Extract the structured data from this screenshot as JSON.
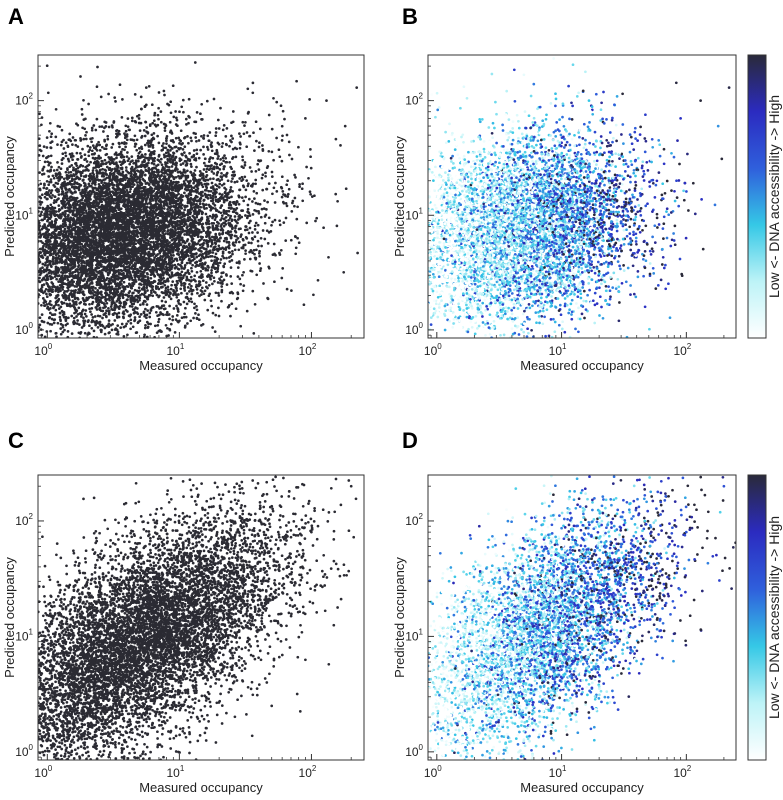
{
  "chart_data": [
    {
      "panel": "A",
      "type": "scatter",
      "xlabel": "Measured occupancy",
      "ylabel": "Predicted occupancy",
      "xscale": "log",
      "yscale": "log",
      "xlim": [
        0.85,
        250
      ],
      "ylim": [
        0.85,
        250
      ],
      "xticks": [
        {
          "base": "10",
          "exp": "0",
          "value": 1
        },
        {
          "base": "10",
          "exp": "1",
          "value": 10
        },
        {
          "base": "10",
          "exp": "2",
          "value": 100
        }
      ],
      "yticks": [
        {
          "base": "10",
          "exp": "0",
          "value": 1
        },
        {
          "base": "10",
          "exp": "1",
          "value": 10
        },
        {
          "base": "10",
          "exp": "2",
          "value": 100
        }
      ],
      "color_mode": "solid",
      "marker_color": "#2b2b33",
      "points": [
        [
          1.4,
          3.2
        ],
        [
          2.1,
          7.5
        ],
        [
          3.0,
          12.0
        ],
        [
          4.5,
          5.0
        ],
        [
          6.0,
          20.0
        ],
        [
          8.0,
          9.0
        ],
        [
          12.0,
          30.0
        ],
        [
          18.0,
          14.0
        ],
        [
          25.0,
          8.0
        ],
        [
          40.0,
          25.0
        ],
        [
          60.0,
          45.0
        ],
        [
          90.0,
          70.0
        ],
        [
          130.0,
          100.0
        ],
        [
          180.0,
          60.0
        ],
        [
          220.0,
          130.0
        ],
        [
          1.2,
          60.0
        ],
        [
          2.5,
          1.5
        ],
        [
          5.0,
          2.2
        ],
        [
          10.0,
          1.2
        ],
        [
          30.0,
          3.0
        ]
      ],
      "point_cloud": {
        "count": 9000,
        "log_x_mean": 0.55,
        "log_x_sd": 0.5,
        "log_y_mean": 0.85,
        "log_y_sd": 0.42,
        "correlation": 0.25
      }
    },
    {
      "panel": "B",
      "type": "scatter",
      "xlabel": "Measured occupancy",
      "ylabel": "Predicted occupancy",
      "xscale": "log",
      "yscale": "log",
      "xlim": [
        0.85,
        250
      ],
      "ylim": [
        0.85,
        250
      ],
      "xticks": [
        {
          "base": "10",
          "exp": "0",
          "value": 1
        },
        {
          "base": "10",
          "exp": "1",
          "value": 10
        },
        {
          "base": "10",
          "exp": "2",
          "value": 100
        }
      ],
      "yticks": [
        {
          "base": "10",
          "exp": "0",
          "value": 1
        },
        {
          "base": "10",
          "exp": "1",
          "value": 10
        },
        {
          "base": "10",
          "exp": "2",
          "value": 100
        }
      ],
      "color_mode": "accessibility",
      "colorbar": {
        "label": "Low <-   DNA accessibility   -> High",
        "stops": [
          "#ffffff",
          "#bdf3f7",
          "#35c8e6",
          "#2f5fdc",
          "#2b2bc0",
          "#2a2a3a"
        ]
      },
      "points": [
        [
          1.4,
          3.2
        ],
        [
          2.1,
          7.5
        ],
        [
          3.0,
          12.0
        ],
        [
          4.5,
          5.0
        ],
        [
          6.0,
          20.0
        ],
        [
          8.0,
          9.0
        ],
        [
          12.0,
          30.0
        ],
        [
          18.0,
          14.0
        ],
        [
          25.0,
          8.0
        ],
        [
          40.0,
          25.0
        ],
        [
          60.0,
          45.0
        ],
        [
          90.0,
          70.0
        ],
        [
          130.0,
          100.0
        ],
        [
          180.0,
          60.0
        ],
        [
          220.0,
          130.0
        ]
      ],
      "point_cloud": {
        "count": 9000,
        "log_x_mean": 0.55,
        "log_x_sd": 0.5,
        "log_y_mean": 0.85,
        "log_y_sd": 0.42,
        "correlation": 0.25
      }
    },
    {
      "panel": "C",
      "type": "scatter",
      "xlabel": "Measured occupancy",
      "ylabel": "Predicted occupancy",
      "xscale": "log",
      "yscale": "log",
      "xlim": [
        0.85,
        250
      ],
      "ylim": [
        0.85,
        250
      ],
      "xticks": [
        {
          "base": "10",
          "exp": "0",
          "value": 1
        },
        {
          "base": "10",
          "exp": "1",
          "value": 10
        },
        {
          "base": "10",
          "exp": "2",
          "value": 100
        }
      ],
      "yticks": [
        {
          "base": "10",
          "exp": "0",
          "value": 1
        },
        {
          "base": "10",
          "exp": "1",
          "value": 10
        },
        {
          "base": "10",
          "exp": "2",
          "value": 100
        }
      ],
      "color_mode": "solid",
      "marker_color": "#2b2b33",
      "points": [
        [
          1.3,
          1.5
        ],
        [
          2.0,
          3.0
        ],
        [
          3.5,
          5.0
        ],
        [
          5.0,
          8.0
        ],
        [
          8.0,
          12.0
        ],
        [
          12.0,
          20.0
        ],
        [
          20.0,
          25.0
        ],
        [
          35.0,
          35.0
        ],
        [
          60.0,
          50.0
        ],
        [
          100.0,
          80.0
        ],
        [
          150.0,
          120.0
        ],
        [
          200.0,
          200.0
        ],
        [
          1.5,
          20.0
        ],
        [
          3.0,
          60.0
        ],
        [
          50.0,
          2.5
        ]
      ],
      "point_cloud": {
        "count": 8500,
        "log_x_mean": 0.7,
        "log_x_sd": 0.55,
        "log_y_mean": 0.95,
        "log_y_sd": 0.55,
        "correlation": 0.62
      }
    },
    {
      "panel": "D",
      "type": "scatter",
      "xlabel": "Measured occupancy",
      "ylabel": "Predicted occupancy",
      "xscale": "log",
      "yscale": "log",
      "xlim": [
        0.85,
        250
      ],
      "ylim": [
        0.85,
        250
      ],
      "xticks": [
        {
          "base": "10",
          "exp": "0",
          "value": 1
        },
        {
          "base": "10",
          "exp": "1",
          "value": 10
        },
        {
          "base": "10",
          "exp": "2",
          "value": 100
        }
      ],
      "yticks": [
        {
          "base": "10",
          "exp": "0",
          "value": 1
        },
        {
          "base": "10",
          "exp": "1",
          "value": 10
        },
        {
          "base": "10",
          "exp": "2",
          "value": 100
        }
      ],
      "color_mode": "accessibility",
      "colorbar": {
        "label": "Low <-   DNA accessibility   -> High",
        "stops": [
          "#ffffff",
          "#bdf3f7",
          "#35c8e6",
          "#2f5fdc",
          "#2b2bc0",
          "#2a2a3a"
        ]
      },
      "points": [
        [
          1.3,
          1.5
        ],
        [
          2.0,
          3.0
        ],
        [
          3.5,
          5.0
        ],
        [
          5.0,
          8.0
        ],
        [
          8.0,
          12.0
        ],
        [
          12.0,
          20.0
        ],
        [
          20.0,
          25.0
        ],
        [
          35.0,
          35.0
        ],
        [
          60.0,
          50.0
        ],
        [
          100.0,
          80.0
        ],
        [
          150.0,
          120.0
        ],
        [
          200.0,
          200.0
        ]
      ],
      "point_cloud": {
        "count": 7000,
        "log_x_mean": 0.7,
        "log_x_sd": 0.55,
        "log_y_mean": 0.95,
        "log_y_sd": 0.55,
        "correlation": 0.62
      }
    }
  ]
}
